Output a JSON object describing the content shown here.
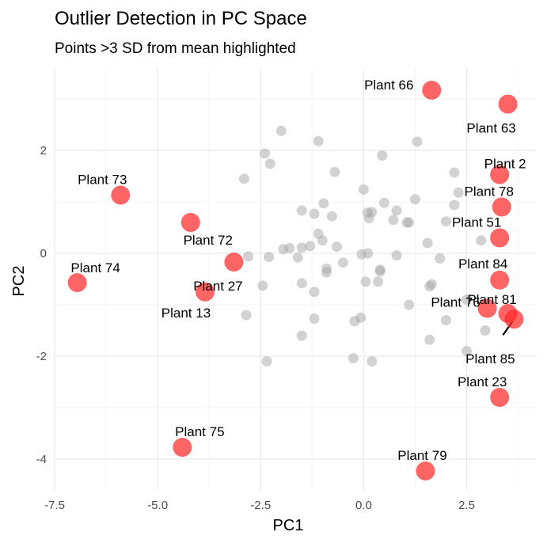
{
  "chart_data": {
    "type": "scatter",
    "title": "Outlier Detection in PC Space",
    "subtitle": "Points >3 SD from mean highlighted",
    "xlabel": "PC1",
    "ylabel": "PC2",
    "xlim": [
      -7.5,
      4.2
    ],
    "ylim": [
      -4.6,
      3.6
    ],
    "x_ticks": [
      {
        "value": -7.5,
        "label": "-7.5"
      },
      {
        "value": -5.0,
        "label": "-5.0"
      },
      {
        "value": -2.5,
        "label": "-2.5"
      },
      {
        "value": 0.0,
        "label": "0.0"
      },
      {
        "value": 2.5,
        "label": "2.5"
      }
    ],
    "y_ticks": [
      {
        "value": -4,
        "label": "-4"
      },
      {
        "value": -2,
        "label": "-2"
      },
      {
        "value": 0,
        "label": "0"
      },
      {
        "value": 2,
        "label": "2"
      }
    ],
    "grid": true,
    "colors": {
      "normal": "#a6a6a6",
      "outlier": "#ff2a2a"
    },
    "normal_points": [
      [
        -2.0,
        2.38
      ],
      [
        -1.1,
        2.18
      ],
      [
        -2.4,
        1.94
      ],
      [
        -2.27,
        1.74
      ],
      [
        -2.9,
        1.45
      ],
      [
        -0.7,
        1.58
      ],
      [
        0.45,
        1.9
      ],
      [
        1.3,
        2.17
      ],
      [
        2.2,
        1.57
      ],
      [
        2.3,
        1.18
      ],
      [
        2.2,
        0.94
      ],
      [
        -1.5,
        0.83
      ],
      [
        -1.2,
        0.77
      ],
      [
        -0.97,
        0.97
      ],
      [
        -0.77,
        0.72
      ],
      [
        -1.1,
        0.38
      ],
      [
        0.0,
        1.24
      ],
      [
        0.1,
        0.79
      ],
      [
        0.2,
        0.8
      ],
      [
        0.5,
        0.98
      ],
      [
        0.8,
        0.83
      ],
      [
        0.72,
        0.65
      ],
      [
        1.05,
        0.6
      ],
      [
        1.1,
        0.6
      ],
      [
        1.25,
        1.05
      ],
      [
        0.13,
        0.68
      ],
      [
        -1.3,
        0.14
      ],
      [
        -1.5,
        0.11
      ],
      [
        -1.8,
        0.1
      ],
      [
        -1.95,
        0.08
      ],
      [
        -2.3,
        -0.07
      ],
      [
        -2.8,
        -0.06
      ],
      [
        -1.6,
        -0.08
      ],
      [
        -1.0,
        0.25
      ],
      [
        -0.65,
        0.13
      ],
      [
        -0.9,
        -0.3
      ],
      [
        -0.5,
        -0.18
      ],
      [
        -0.05,
        -0.02
      ],
      [
        0.1,
        0.0
      ],
      [
        0.4,
        -0.35
      ],
      [
        0.8,
        -0.04
      ],
      [
        1.55,
        0.2
      ],
      [
        1.85,
        -0.1
      ],
      [
        2.0,
        0.62
      ],
      [
        2.85,
        0.25
      ],
      [
        -2.45,
        -0.63
      ],
      [
        -1.5,
        -0.58
      ],
      [
        -1.2,
        -0.75
      ],
      [
        -0.9,
        -0.37
      ],
      [
        0.05,
        -0.55
      ],
      [
        0.35,
        -0.55
      ],
      [
        0.4,
        -0.32
      ],
      [
        1.6,
        -0.64
      ],
      [
        1.65,
        -0.6
      ],
      [
        2.5,
        -0.9
      ],
      [
        1.1,
        -1.0
      ],
      [
        2.0,
        -1.3
      ],
      [
        2.95,
        -1.5
      ],
      [
        -2.85,
        -1.2
      ],
      [
        -1.2,
        -1.27
      ],
      [
        -0.22,
        -1.32
      ],
      [
        -0.07,
        -1.25
      ],
      [
        1.6,
        -1.68
      ],
      [
        2.5,
        -1.9
      ],
      [
        -1.5,
        -1.6
      ],
      [
        -2.35,
        -2.1
      ],
      [
        -0.25,
        -2.04
      ],
      [
        0.2,
        -2.1
      ]
    ],
    "outliers": [
      {
        "label": "Plant 66",
        "x": 1.65,
        "y": 3.17
      },
      {
        "label": "Plant 63",
        "x": 3.5,
        "y": 2.9
      },
      {
        "label": "Plant 2",
        "x": 3.3,
        "y": 1.53
      },
      {
        "label": "Plant 78",
        "x": 3.35,
        "y": 0.9
      },
      {
        "label": "Plant 51",
        "x": 3.3,
        "y": 0.3
      },
      {
        "label": "Plant 84",
        "x": 3.3,
        "y": -0.52
      },
      {
        "label": "Plant 76",
        "x": 3.0,
        "y": -1.07
      },
      {
        "label": "Plant 81",
        "x": 3.5,
        "y": -1.17
      },
      {
        "label": "Plant 85",
        "x": 3.65,
        "y": -1.28
      },
      {
        "label": "Plant 23",
        "x": 3.3,
        "y": -2.8
      },
      {
        "label": "Plant 79",
        "x": 1.5,
        "y": -4.23
      },
      {
        "label": "Plant 73",
        "x": -5.9,
        "y": 1.13
      },
      {
        "label": "Plant 72",
        "x": -4.2,
        "y": 0.6
      },
      {
        "label": "Plant 27",
        "x": -3.15,
        "y": -0.17
      },
      {
        "label": "Plant 13",
        "x": -3.85,
        "y": -0.75
      },
      {
        "label": "Plant 74",
        "x": -6.95,
        "y": -0.57
      },
      {
        "label": "Plant 75",
        "x": -4.4,
        "y": -3.77
      }
    ]
  }
}
